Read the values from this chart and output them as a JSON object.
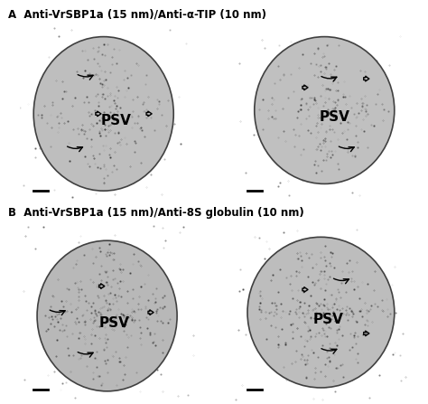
{
  "label_A": "A  Anti-VrSBP1a (15 nm)/Anti-α-TIP (10 nm)",
  "label_B": "B  Anti-VrSBP1a (15 nm)/Anti-8S globulin (10 nm)",
  "psv_label": "PSV",
  "bg_color": "#c8c8c8",
  "psv_color_light": "#d0d0d0",
  "psv_color_dark": "#a8a8a8",
  "text_color": "black",
  "scale_bar_color": "black",
  "fig_bg": "white"
}
